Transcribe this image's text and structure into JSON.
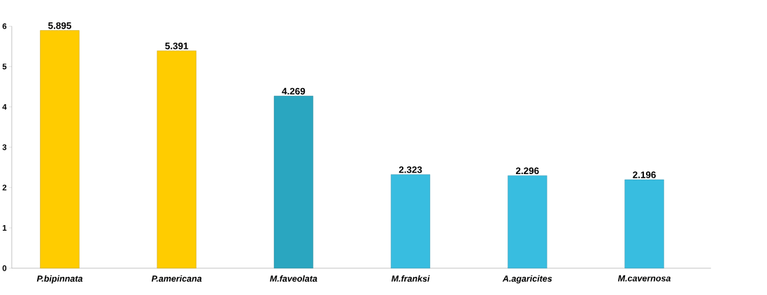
{
  "chart_data": {
    "type": "bar",
    "categories": [
      "P.bipinnata",
      "P.americana",
      "M.faveolata",
      "M.franksi",
      "A.agaricites",
      "M.cavernosa"
    ],
    "values": [
      5.895,
      5.391,
      4.269,
      2.323,
      2.296,
      2.196
    ],
    "colors": [
      "#ffcc00",
      "#ffcc00",
      "#2aa6c0",
      "#38bde0",
      "#38bde0",
      "#38bde0"
    ],
    "ylim": [
      0,
      6
    ],
    "yticks": [
      0,
      1,
      2,
      3,
      4,
      5,
      6
    ],
    "data_labels": true,
    "grid": false
  }
}
